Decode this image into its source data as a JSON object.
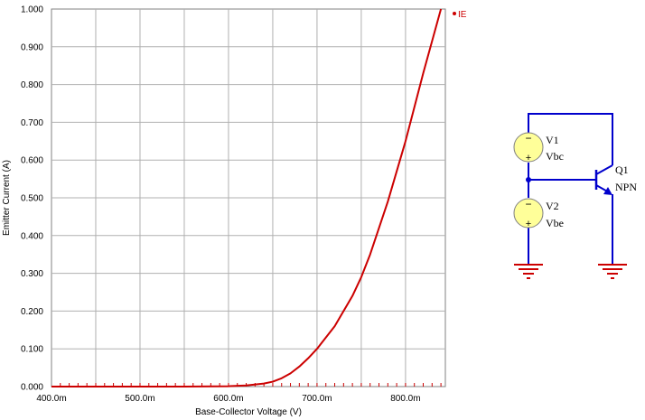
{
  "chart_data": {
    "type": "line",
    "xlabel": "Base-Collector Voltage (V)",
    "ylabel": "Emitter Current (A)",
    "xlim": [
      0.4,
      0.845
    ],
    "ylim": [
      0,
      1.0
    ],
    "x_ticks": [
      0.4,
      0.5,
      0.6,
      0.7,
      0.8
    ],
    "x_tick_labels": [
      "400.0m",
      "500.0m",
      "600.0m",
      "700.0m",
      "800.0m"
    ],
    "y_ticks": [
      0,
      0.1,
      0.2,
      0.3,
      0.4,
      0.5,
      0.6,
      0.7,
      0.8,
      0.9,
      1.0
    ],
    "y_tick_labels": [
      "0.000",
      "0.100",
      "0.200",
      "0.300",
      "0.400",
      "0.500",
      "0.600",
      "0.700",
      "0.800",
      "0.900",
      "1.000"
    ],
    "grid": true,
    "legend_position": "top-right",
    "series": [
      {
        "name": "IE",
        "color": "#cc0000",
        "x": [
          0.4,
          0.5,
          0.55,
          0.6,
          0.62,
          0.64,
          0.65,
          0.66,
          0.67,
          0.68,
          0.69,
          0.7,
          0.72,
          0.74,
          0.75,
          0.76,
          0.78,
          0.8,
          0.82,
          0.84
        ],
        "y": [
          0,
          0,
          0,
          0.001,
          0.003,
          0.008,
          0.013,
          0.022,
          0.035,
          0.053,
          0.075,
          0.1,
          0.16,
          0.24,
          0.29,
          0.35,
          0.49,
          0.65,
          0.83,
          1.0
        ]
      }
    ]
  },
  "schematic": {
    "source_top": {
      "name": "V1",
      "value": "Vbc"
    },
    "source_bottom": {
      "name": "V2",
      "value": "Vbe"
    },
    "transistor": {
      "name": "Q1",
      "type": "NPN"
    },
    "plus_sign": "+",
    "minus_sign": "−",
    "wire_color": "#0000cc",
    "ground_color": "#cc0000",
    "source_fill": "#ffff99"
  }
}
